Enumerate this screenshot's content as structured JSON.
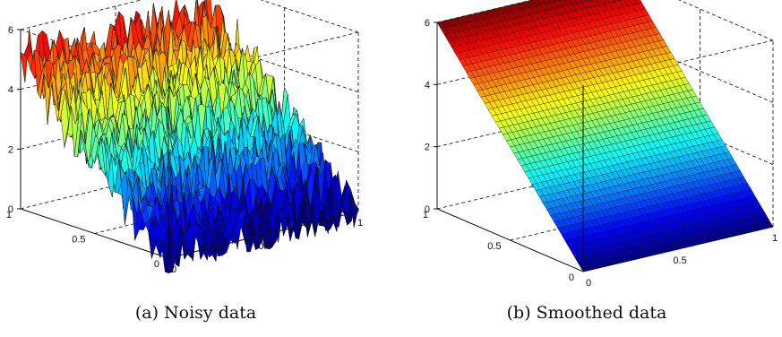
{
  "chart_data": [
    {
      "type": "surface",
      "title": "",
      "caption": "(a) Noisy data",
      "x": {
        "ticks": [
          "0",
          "0.5",
          "1"
        ],
        "lim": [
          0,
          1
        ]
      },
      "y": {
        "ticks": [
          "0",
          "0.5",
          "1"
        ],
        "lim": [
          0,
          1
        ]
      },
      "z": {
        "ticks": [
          "0",
          "2",
          "4",
          "6"
        ],
        "lim": [
          0,
          6
        ]
      },
      "surface": {
        "function": "z = 5*y + noise",
        "noise_amplitude": 1.0,
        "grid": 44
      },
      "colormap": "jet",
      "box": true,
      "grid": true
    },
    {
      "type": "surface",
      "title": "",
      "caption": "(b) Smoothed data",
      "x": {
        "ticks": [
          "0",
          "0.5",
          "1"
        ],
        "lim": [
          0,
          1
        ]
      },
      "y": {
        "ticks": [
          "0",
          "0.5",
          "1"
        ],
        "lim": [
          0,
          1
        ]
      },
      "z": {
        "ticks": [
          "0",
          "2",
          "4",
          "6"
        ],
        "lim": [
          0,
          6
        ]
      },
      "surface": {
        "function": "z = 6*y",
        "noise_amplitude": 0,
        "grid": 40
      },
      "colormap": "jet",
      "box": true,
      "grid": true
    }
  ]
}
